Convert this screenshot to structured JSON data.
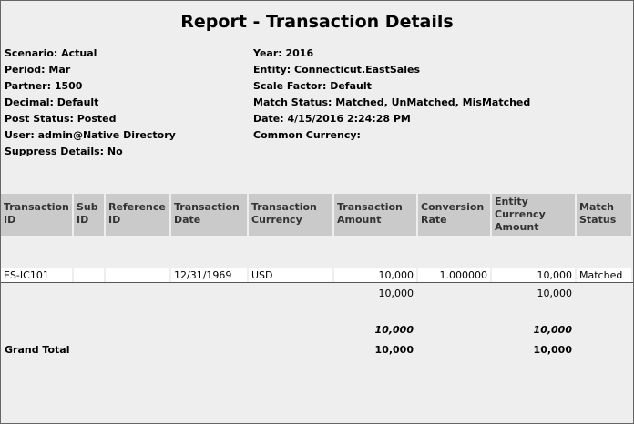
{
  "header": {
    "title": "Report - Transaction Details"
  },
  "info": {
    "left": [
      "Scenario: Actual",
      "Period: Mar",
      "Partner: 1500",
      "Decimal: Default",
      "Post Status: Posted",
      "User: admin@Native Directory",
      "Suppress Details: No"
    ],
    "right": [
      "Year: 2016",
      "Entity: Connecticut.EastSales",
      "Scale Factor: Default",
      "Match Status: Matched, UnMatched, MisMatched",
      "Date: 4/15/2016 2:24:28 PM",
      "Common Currency:"
    ]
  },
  "table": {
    "columns": [
      [
        "Transaction",
        "ID"
      ],
      [
        "Sub",
        "ID"
      ],
      [
        "Reference",
        "ID"
      ],
      [
        "Transaction",
        "Date"
      ],
      [
        "Transaction",
        "Currency"
      ],
      [
        "Transaction",
        "Amount"
      ],
      [
        "Conversion",
        "Rate"
      ],
      [
        "Entity",
        "Currency",
        "Amount"
      ],
      [
        "Match",
        "Status"
      ]
    ],
    "row": {
      "transaction_id": "ES-IC101",
      "transaction_date": "12/31/1969",
      "transaction_currency": "USD",
      "transaction_amount": "10,000",
      "conversion_rate": "1.000000",
      "entity_currency_amount": "10,000",
      "match_status": "Matched"
    },
    "subtotal": {
      "transaction_amount": "10,000",
      "entity_currency_amount": "10,000"
    },
    "total": {
      "transaction_amount": "10,000",
      "entity_currency_amount": "10,000"
    },
    "grand_total": {
      "label": "Grand Total",
      "transaction_amount": "10,000",
      "entity_currency_amount": "10,000"
    }
  }
}
